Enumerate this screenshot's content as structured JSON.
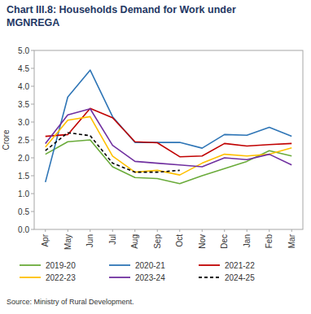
{
  "chart_data": {
    "type": "line",
    "title": "Chart III.8: Households Demand for Work under MGNREGA",
    "y_label": "Crore",
    "source": "Source: Ministry of Rural Development.",
    "categories": [
      "Apr",
      "May",
      "Jun",
      "Jul",
      "Aug",
      "Sep",
      "Oct",
      "Nov",
      "Dec",
      "Jan",
      "Feb",
      "Mar"
    ],
    "series": [
      {
        "name": "2019-20",
        "color": "#6aab3a",
        "line_style": "solid",
        "values": [
          2.1,
          2.45,
          2.5,
          1.75,
          1.45,
          1.42,
          1.28,
          1.5,
          1.7,
          1.9,
          2.2,
          2.05
        ]
      },
      {
        "name": "2020-21",
        "color": "#2e75b6",
        "line_style": "solid",
        "values": [
          1.32,
          3.7,
          4.45,
          3.15,
          2.43,
          2.43,
          2.43,
          2.27,
          2.65,
          2.63,
          2.85,
          2.6
        ]
      },
      {
        "name": "2021-22",
        "color": "#c00000",
        "line_style": "solid",
        "values": [
          2.6,
          2.65,
          3.38,
          3.12,
          2.45,
          2.42,
          2.03,
          2.05,
          2.4,
          2.33,
          2.37,
          2.4
        ]
      },
      {
        "name": "2022-23",
        "color": "#ffc000",
        "line_style": "solid",
        "values": [
          2.3,
          3.05,
          3.15,
          2.05,
          1.6,
          1.65,
          1.52,
          1.85,
          2.1,
          2.05,
          2.1,
          2.28
        ]
      },
      {
        "name": "2023-24",
        "color": "#7030a0",
        "line_style": "solid",
        "values": [
          2.4,
          3.2,
          3.37,
          2.35,
          1.9,
          1.85,
          1.8,
          1.75,
          2.0,
          1.95,
          2.1,
          1.8
        ]
      },
      {
        "name": "2024-25",
        "color": "#000000",
        "line_style": "dashed",
        "values": [
          2.2,
          2.7,
          2.62,
          1.85,
          1.6,
          1.6,
          1.65,
          null,
          null,
          null,
          null,
          null
        ]
      }
    ],
    "ylim": [
      0,
      5
    ],
    "yticks": [
      {
        "value": 0,
        "label": "0.0"
      },
      {
        "value": 0.5,
        "label": "0.5"
      },
      {
        "value": 1,
        "label": "1.0"
      },
      {
        "value": 1.5,
        "label": "1.5"
      },
      {
        "value": 2,
        "label": "2.0"
      },
      {
        "value": 2.5,
        "label": "2.5"
      },
      {
        "value": 3,
        "label": "3.0"
      },
      {
        "value": 3.5,
        "label": "3.5"
      },
      {
        "value": 4,
        "label": "4.0"
      },
      {
        "value": 4.5,
        "label": "4.5"
      },
      {
        "value": 5,
        "label": "5.0"
      }
    ],
    "grid": false,
    "legend": "bottom"
  }
}
